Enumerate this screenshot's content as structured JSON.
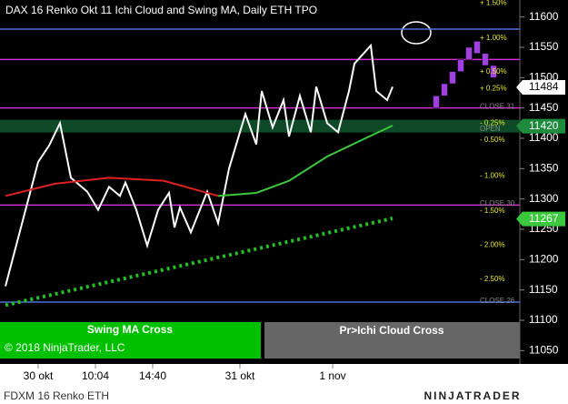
{
  "chart_data": {
    "type": "line",
    "title": "DAX 16 Renko Okt 11 Ichi Cloud and Swing MA, Daily ETH TPO",
    "ylim": [
      11028,
      11628
    ],
    "yticks": [
      11050,
      11100,
      11150,
      11200,
      11250,
      11300,
      11350,
      11400,
      11450,
      11500,
      11550,
      11600
    ],
    "xlim": [
      0,
      95
    ],
    "xticks": [
      {
        "value": 7,
        "label": "30 okt"
      },
      {
        "value": 17.5,
        "label": "10:04"
      },
      {
        "value": 28,
        "label": "14:40"
      },
      {
        "value": 44,
        "label": "31 okt"
      },
      {
        "value": 61,
        "label": "1 nov"
      }
    ],
    "series": [
      {
        "color": "#ffffff",
        "x": [
          1,
          7,
          9,
          11,
          13,
          16,
          18,
          20,
          22,
          23,
          25,
          27,
          29,
          31,
          32,
          33,
          35,
          38,
          40,
          42,
          44,
          45,
          47,
          48,
          50,
          52,
          53,
          55,
          57,
          58,
          60,
          62,
          64,
          65,
          68,
          69,
          71,
          72
        ],
        "values": [
          11156,
          11361,
          11388,
          11425,
          11335,
          11312,
          11282,
          11320,
          11305,
          11327,
          11282,
          11223,
          11282,
          11310,
          11253,
          11286,
          11245,
          11312,
          11260,
          11350,
          11410,
          11440,
          11390,
          11478,
          11418,
          11463,
          11403,
          11470,
          11410,
          11485,
          11425,
          11410,
          11478,
          11523,
          11553,
          11478,
          11463,
          11485
        ]
      },
      {
        "color": "#e02020",
        "x": [
          1,
          10,
          20,
          30,
          40
        ],
        "values": [
          11305,
          11325,
          11335,
          11330,
          11305
        ]
      },
      {
        "color": "#3cc83c",
        "x": [
          40,
          47,
          53,
          60,
          67,
          72
        ],
        "values": [
          11305,
          11310,
          11330,
          11370,
          11400,
          11421
        ]
      }
    ],
    "dotted_line": {
      "color": "#22c022",
      "x": [
        1,
        72
      ],
      "values": [
        11125,
        11268
      ]
    },
    "bricks": [
      {
        "x": 80,
        "open": 11450,
        "close": 11470
      },
      {
        "x": 81.5,
        "open": 11470,
        "close": 11490
      },
      {
        "x": 83,
        "open": 11490,
        "close": 11510
      },
      {
        "x": 84.5,
        "open": 11510,
        "close": 11530
      },
      {
        "x": 86,
        "open": 11530,
        "close": 11550
      },
      {
        "x": 87.5,
        "open": 11540,
        "close": 11560
      },
      {
        "x": 89,
        "open": 11520,
        "close": 11540
      },
      {
        "x": 90.5,
        "open": 11500,
        "close": 11520
      }
    ],
    "levels": [
      {
        "value": 11580,
        "color": "#4a6fd8"
      },
      {
        "value": 11130,
        "color": "#4a6fd8"
      },
      {
        "value": 11530,
        "color": "#d030d0"
      },
      {
        "value": 11450,
        "color": "#d030d0"
      },
      {
        "value": 11290,
        "color": "#d030d0"
      },
      {
        "value": 11420,
        "color": "#0e4a28"
      }
    ],
    "percent_labels": [
      {
        "value": 11623,
        "label": "+ 1.50%"
      },
      {
        "value": 11565,
        "label": "+ 1.00%"
      },
      {
        "value": 11510,
        "label": "+ 0.50%"
      },
      {
        "value": 11482,
        "label": "+ 0.25%"
      },
      {
        "value": 11425,
        "label": "- 0.25%"
      },
      {
        "value": 11397,
        "label": "- 0.50%"
      },
      {
        "value": 11338,
        "label": "- 1.00%"
      },
      {
        "value": 11280,
        "label": "- 1.50%"
      },
      {
        "value": 11224,
        "label": "- 2.00%"
      },
      {
        "value": 11168,
        "label": "- 2.50%"
      }
    ],
    "session_labels": [
      {
        "value": 11452,
        "label": "CLOSE 31"
      },
      {
        "value": 11415,
        "label": "OPEN"
      },
      {
        "value": 11292,
        "label": "CLOSE 30"
      },
      {
        "value": 11132,
        "label": "CLOSE 26"
      }
    ],
    "price_tags": [
      {
        "value": 11484,
        "color": "#ffffff"
      },
      {
        "value": 11420,
        "color": "#1e8c3c"
      },
      {
        "value": 11267,
        "color": "#3cc83c"
      }
    ],
    "panels": [
      "Swing MA Cross",
      "Pr>Ichi Cloud Cross"
    ],
    "copyright": "© 2018 NinjaTrader, LLC",
    "instrument": "FDXM 16 Renko ETH",
    "logo": "NINJATRADER"
  }
}
